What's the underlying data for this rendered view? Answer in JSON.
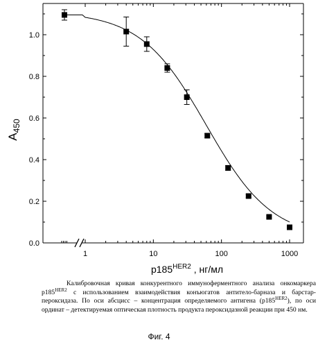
{
  "chart_data": {
    "type": "scatter",
    "x_scale": "log",
    "x_axis_break": true,
    "x_break_value": 0.5,
    "points": [
      {
        "x": 0.5,
        "y": 1.095,
        "err": 0.025
      },
      {
        "x": 4,
        "y": 1.015,
        "err": 0.07
      },
      {
        "x": 8,
        "y": 0.955,
        "err": 0.035
      },
      {
        "x": 16,
        "y": 0.84,
        "err": 0.02
      },
      {
        "x": 31,
        "y": 0.7,
        "err": 0.035
      },
      {
        "x": 62,
        "y": 0.515,
        "err": 0.01
      },
      {
        "x": 125,
        "y": 0.36,
        "err": 0.012
      },
      {
        "x": 250,
        "y": 0.225,
        "err": 0.008
      },
      {
        "x": 500,
        "y": 0.125,
        "err": 0.005
      },
      {
        "x": 1000,
        "y": 0.075,
        "err": 0.005
      }
    ],
    "fit_curve": {
      "top": 1.11,
      "bottom": 0.02,
      "ic50": 60,
      "hill": 0.9
    },
    "xlim": [
      1,
      1000
    ],
    "ylim": [
      0,
      1.15
    ],
    "x_ticks": [
      {
        "value": 1,
        "label": "1"
      },
      {
        "value": 10,
        "label": "10"
      },
      {
        "value": 100,
        "label": "100"
      },
      {
        "value": 1000,
        "label": "1000"
      }
    ],
    "y_ticks": [
      {
        "value": 0.0,
        "label": "0.0"
      },
      {
        "value": 0.2,
        "label": "0.2"
      },
      {
        "value": 0.4,
        "label": "0.4"
      },
      {
        "value": 0.6,
        "label": "0.6"
      },
      {
        "value": 0.8,
        "label": "0.8"
      },
      {
        "value": 1.0,
        "label": "1.0"
      }
    ],
    "xlabel": {
      "main": "p185",
      "sup": "HER2",
      "unit": " , нг/мл"
    },
    "ylabel": {
      "main": "A",
      "sub": "450"
    },
    "grid": false,
    "colors": {
      "marker": "#000000",
      "line": "#000000",
      "axis": "#000000"
    }
  },
  "caption": {
    "part1": "Калибровочная кривая конкурентного иммуноферментного анализа онкомаркера p185",
    "sup1": "HER2",
    "part2": " с использованием взаимодействия конъюгатов антитело-барназа и барстар-пероксидаза. По оси абсцисс – концентрация определяемого антигена (p185",
    "sup2": "HER2",
    "part3": "), по оси ординат – детектируемая оптическая плотность продукта пероксидазной реакции при 450 нм."
  },
  "figure_label": "Фиг. 4"
}
